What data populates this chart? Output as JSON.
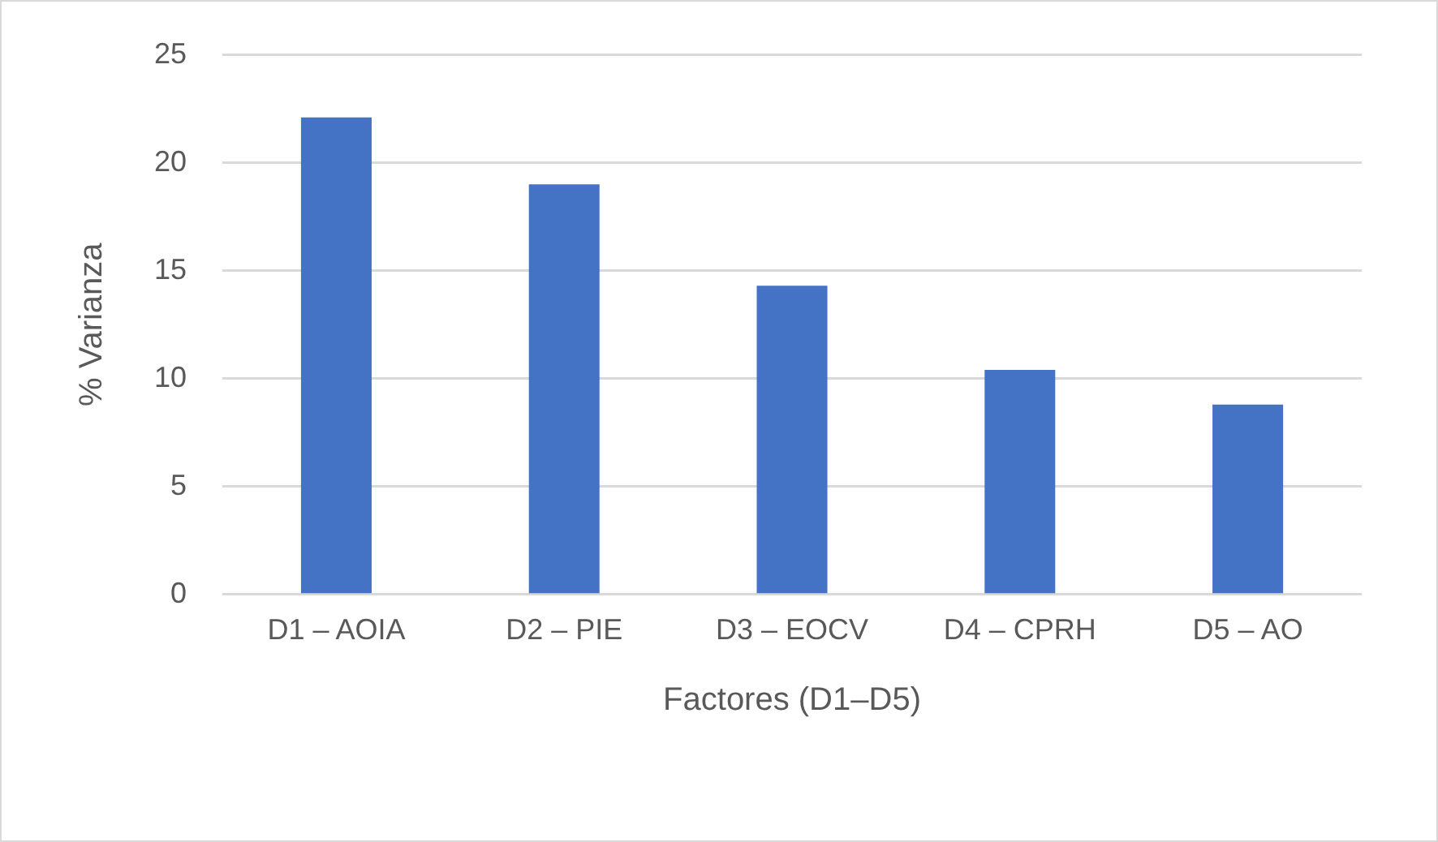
{
  "chart_data": {
    "type": "bar",
    "xlabel": "Factores (D1–D5)",
    "ylabel": "% Varianza",
    "categories": [
      "D1 – AOIA",
      "D2 – PIE",
      "D3 – EOCV",
      "D4 – CPRH",
      "D5 – AO"
    ],
    "values": [
      22.1,
      19.0,
      14.3,
      10.4,
      8.8
    ],
    "color": "#4472c4",
    "ylim": [
      0,
      25
    ],
    "yticks": [
      0,
      5,
      10,
      15,
      20,
      25
    ],
    "grid": "y",
    "legend": false
  }
}
